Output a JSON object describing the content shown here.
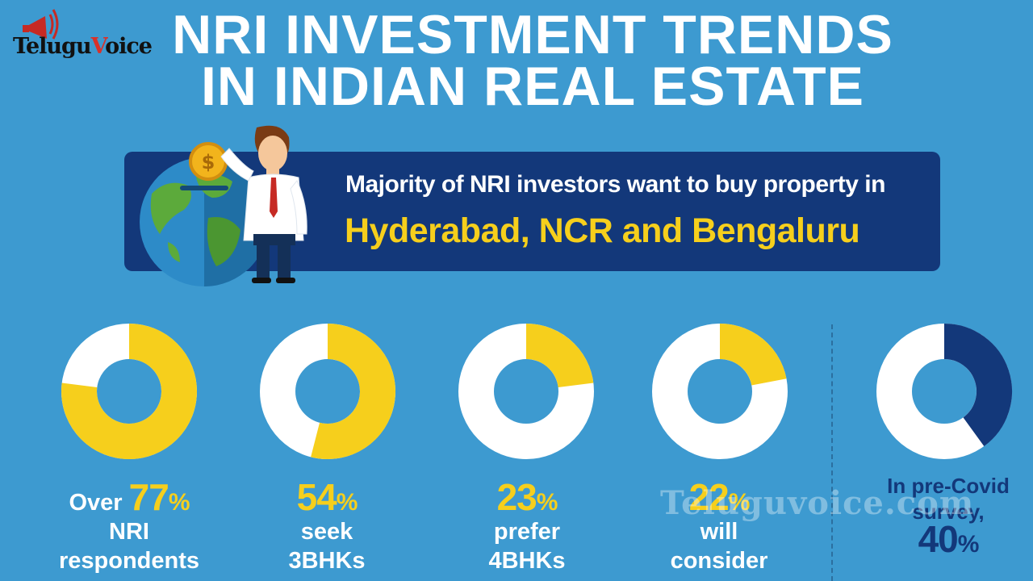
{
  "logo": {
    "text_main": "Telugu",
    "text_accent": "V",
    "text_end": "oice"
  },
  "title": {
    "line1": "NRI INVESTMENT TRENDS",
    "line2": "IN INDIAN REAL ESTATE"
  },
  "banner": {
    "line1": "Majority of NRI investors want to buy property in",
    "line2": "Hyderabad, NCR and Bengaluru"
  },
  "coin_symbol": "$",
  "stats": [
    {
      "prefix": "Over ",
      "value": "77",
      "sign": "%",
      "l1": "NRI",
      "l2": "respondents"
    },
    {
      "prefix": "",
      "value": "54",
      "sign": "%",
      "l1": "seek",
      "l2": "3BHKs"
    },
    {
      "prefix": "",
      "value": "23",
      "sign": "%",
      "l1": "prefer",
      "l2": "4BHKs"
    },
    {
      "prefix": "",
      "value": "22",
      "sign": "%",
      "l1": "will",
      "l2": "consider"
    },
    {
      "pre1": "In pre-Covid",
      "pre2": "survey,",
      "value": "40",
      "sign": "%"
    }
  ],
  "watermark": "Teluguvoice.com",
  "colors": {
    "background": "#3d9ad0",
    "banner": "#13387a",
    "yellow": "#f6cf1c",
    "navy": "#13387a",
    "white": "#ffffff"
  },
  "chart_data": {
    "type": "pie",
    "donuts": [
      {
        "value": 77,
        "color": "#f6cf1c"
      },
      {
        "value": 54,
        "color": "#f6cf1c"
      },
      {
        "value": 23,
        "color": "#f6cf1c"
      },
      {
        "value": 22,
        "color": "#f6cf1c"
      },
      {
        "value": 40,
        "color": "#13387a"
      }
    ],
    "unit": "%"
  }
}
